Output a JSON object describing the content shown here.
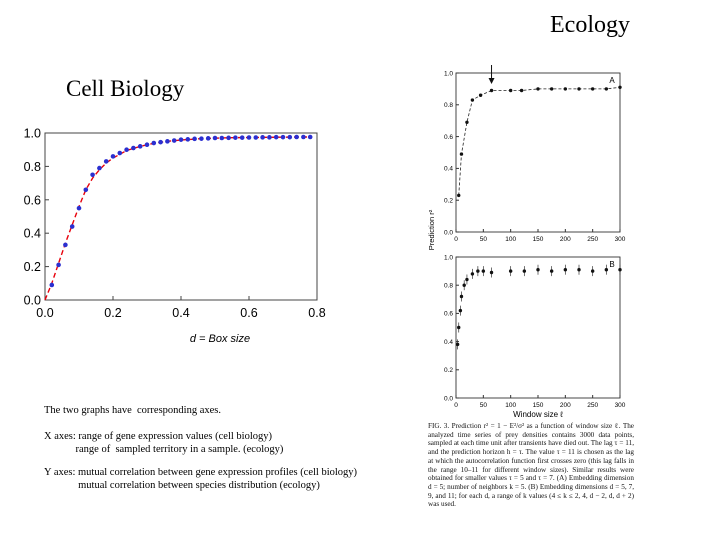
{
  "titles": {
    "ecology": "Ecology",
    "cell_biology": "Cell Biology"
  },
  "cell_xlabel": "d = Box size",
  "notes": {
    "line1": "The two graphs have  corresponding axes.",
    "line2": "X axes: range of gene expression values (cell biology)\n            range of  sampled territory in a sample. (ecology)",
    "line3": "Y axes: mutual correlation between gene expression profiles (cell biology)\n             mutual correlation between species distribution (ecology)"
  },
  "eco_caption": "FIG. 3.    Prediction r² = 1 − E²/σ² as a function of window size ℓ. The analyzed time series of prey densities contains 3000 data points, sampled at each time unit after transients have died out. The lag τ = 11, and the prediction horizon h = τ. The value τ = 11 is chosen as the lag at which the autocorrelation function first crosses zero (this lag falls in the range 10–11 for different window sizes). Similar results were obtained for smaller values τ = 5 and τ = 7. (A) Embedding dimension d = 5; number of neighbors k = 5. (B) Embedding dimensions d = 5, 7, 9, and 11; for each d, a range of k values (4 ≤ k ≤ 2, 4, d − 2, d, d + 2) was used.",
  "chart_data": [
    {
      "id": "cell-biology",
      "type": "scatter",
      "title": "",
      "xlabel": "d = Box size",
      "ylabel": "",
      "xlim": [
        0,
        0.8
      ],
      "ylim": [
        0,
        1.0
      ],
      "xticks": [
        "0.0",
        "0.2",
        "0.4",
        "0.6",
        "0.8"
      ],
      "yticks": [
        "0.0",
        "0.2",
        "0.4",
        "0.6",
        "0.8",
        "1.0"
      ],
      "grid": false,
      "marker_color": "#2b2fd0",
      "fit_color": "#e8000b",
      "series": [
        {
          "kind": "points",
          "x": [
            0.02,
            0.04,
            0.06,
            0.08,
            0.1,
            0.12,
            0.14,
            0.16,
            0.18,
            0.2,
            0.22,
            0.24,
            0.26,
            0.28,
            0.3,
            0.32,
            0.34,
            0.36,
            0.38,
            0.4,
            0.42,
            0.44,
            0.46,
            0.48,
            0.5,
            0.52,
            0.54,
            0.56,
            0.58,
            0.6,
            0.62,
            0.64,
            0.66,
            0.68,
            0.7,
            0.72,
            0.74,
            0.76,
            0.78
          ],
          "y": [
            0.09,
            0.21,
            0.33,
            0.44,
            0.55,
            0.66,
            0.75,
            0.79,
            0.83,
            0.86,
            0.88,
            0.9,
            0.91,
            0.92,
            0.93,
            0.94,
            0.945,
            0.95,
            0.955,
            0.96,
            0.962,
            0.965,
            0.966,
            0.968,
            0.97,
            0.97,
            0.971,
            0.972,
            0.972,
            0.973,
            0.973,
            0.974,
            0.974,
            0.975,
            0.975,
            0.975,
            0.976,
            0.976,
            0.976
          ]
        },
        {
          "kind": "fit-line",
          "x": [
            0.0,
            0.02,
            0.04,
            0.06,
            0.08,
            0.1,
            0.12,
            0.14,
            0.16,
            0.18,
            0.2,
            0.24,
            0.28,
            0.32,
            0.36,
            0.4,
            0.45,
            0.5,
            0.55,
            0.6,
            0.65,
            0.7,
            0.75,
            0.78
          ],
          "y": [
            0.0,
            0.1,
            0.22,
            0.34,
            0.45,
            0.56,
            0.66,
            0.73,
            0.78,
            0.82,
            0.85,
            0.895,
            0.92,
            0.938,
            0.95,
            0.958,
            0.965,
            0.969,
            0.972,
            0.973,
            0.974,
            0.975,
            0.976,
            0.976
          ]
        }
      ]
    },
    {
      "id": "ecology-A",
      "type": "scatter",
      "panel_label": "A",
      "xlim": [
        0,
        300
      ],
      "ylim": [
        0.0,
        1.0
      ],
      "xticks": [
        "0",
        "50",
        "100",
        "150",
        "200",
        "250",
        "300"
      ],
      "yticks": [
        "0.0",
        "0.2",
        "0.4",
        "0.6",
        "0.8",
        "1.0"
      ],
      "ylabel": "Prediction r²",
      "arrow_x": 65,
      "series": [
        {
          "x": [
            5,
            10,
            20,
            30,
            45,
            65,
            100,
            120,
            150,
            175,
            200,
            225,
            250,
            275,
            300
          ],
          "y": [
            0.23,
            0.49,
            0.69,
            0.83,
            0.86,
            0.89,
            0.89,
            0.89,
            0.9,
            0.9,
            0.9,
            0.9,
            0.9,
            0.9,
            0.91
          ]
        }
      ]
    },
    {
      "id": "ecology-B",
      "type": "scatter",
      "panel_label": "B",
      "xlim": [
        0,
        300
      ],
      "ylim": [
        0.0,
        1.0
      ],
      "xticks": [
        "0",
        "50",
        "100",
        "150",
        "200",
        "250",
        "300"
      ],
      "yticks": [
        "0.0",
        "0.2",
        "0.4",
        "0.6",
        "0.8",
        "1.0"
      ],
      "xlabel": "Window size ℓ",
      "series": [
        {
          "x": [
            3,
            5,
            8,
            10,
            15,
            20,
            30,
            40,
            50,
            65,
            100,
            125,
            150,
            175,
            200,
            225,
            250,
            275,
            300
          ],
          "y": [
            0.38,
            0.5,
            0.62,
            0.72,
            0.8,
            0.84,
            0.88,
            0.9,
            0.9,
            0.89,
            0.9,
            0.9,
            0.91,
            0.9,
            0.91,
            0.91,
            0.9,
            0.91,
            0.91
          ]
        }
      ]
    }
  ]
}
